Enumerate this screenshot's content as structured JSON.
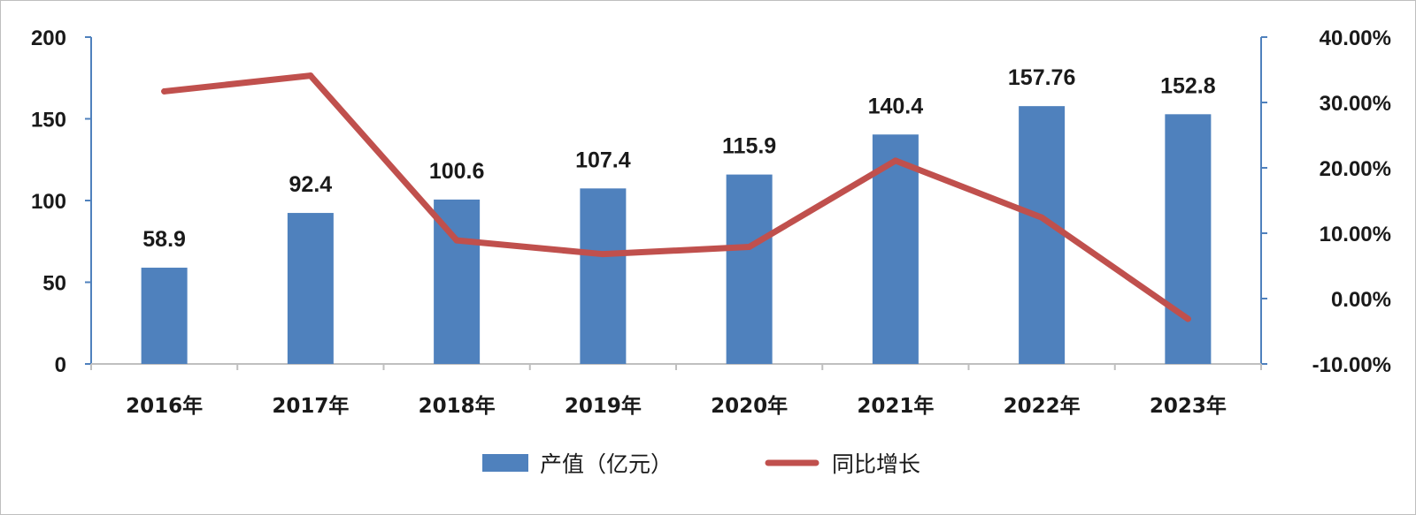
{
  "chart_data": {
    "type": "bar+line",
    "categories": [
      "2016年",
      "2017年",
      "2018年",
      "2019年",
      "2020年",
      "2021年",
      "2022年",
      "2023年"
    ],
    "series": [
      {
        "name": "产值（亿元）",
        "type": "bar",
        "axis": "left",
        "color": "#4f81bd",
        "values": [
          58.9,
          92.4,
          100.6,
          107.4,
          115.9,
          140.4,
          157.76,
          152.8
        ],
        "data_labels": [
          "58.9",
          "92.4",
          "100.6",
          "107.4",
          "115.9",
          "140.4",
          "157.76",
          "152.8"
        ]
      },
      {
        "name": "同比增长",
        "type": "line",
        "axis": "right",
        "color": "#c0504d",
        "values": [
          0.317,
          0.341,
          0.089,
          0.068,
          0.079,
          0.211,
          0.124,
          -0.031
        ]
      }
    ],
    "y_left": {
      "min": 0,
      "max": 200,
      "ticks": [
        0,
        50,
        100,
        150,
        200
      ],
      "tick_labels": [
        "0",
        "50",
        "100",
        "150",
        "200"
      ]
    },
    "y_right": {
      "min": -0.1,
      "max": 0.4,
      "ticks": [
        -0.1,
        0,
        0.1,
        0.2,
        0.3,
        0.4
      ],
      "tick_labels": [
        "-10.00%",
        "0.00%",
        "10.00%",
        "20.00%",
        "30.00%",
        "40.00%"
      ]
    },
    "grid": false,
    "legend": {
      "placement": "bottom",
      "entries": [
        "产值（亿元）",
        "同比增长"
      ]
    },
    "axis_color": "#4f81bd"
  }
}
